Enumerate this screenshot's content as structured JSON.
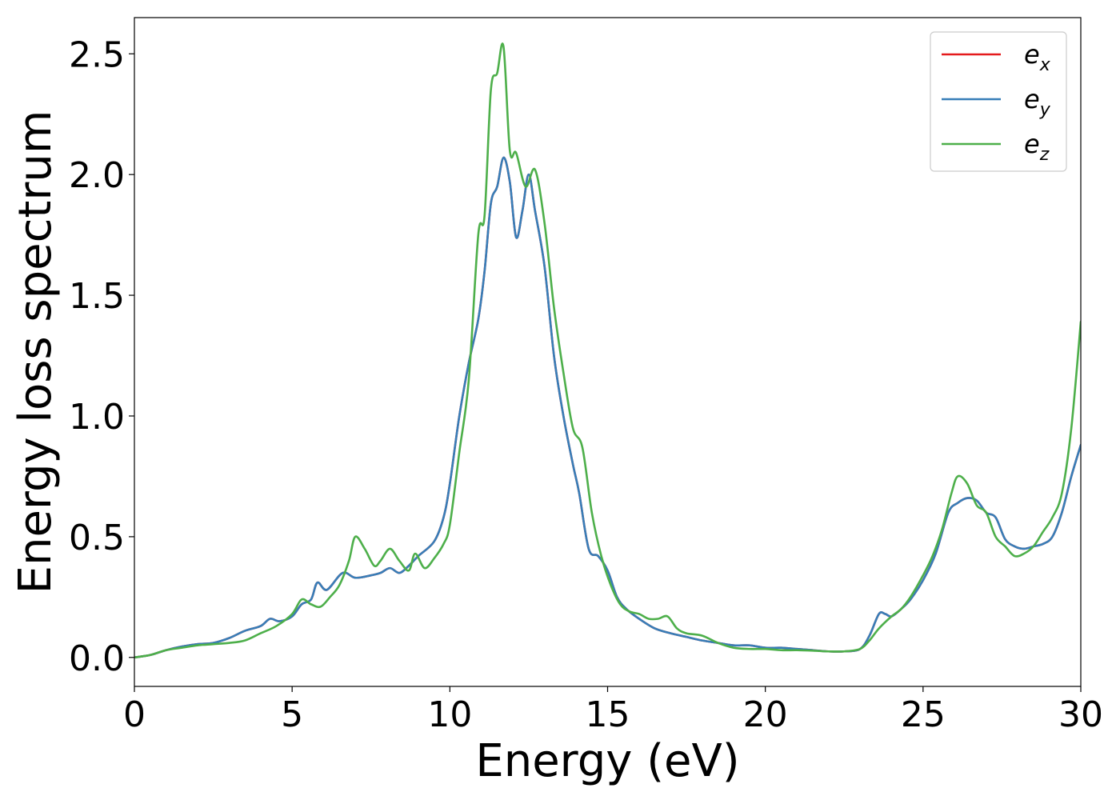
{
  "chart_data": {
    "type": "line",
    "title": "",
    "xlabel": "Energy (eV)",
    "ylabel": "Energy loss spectrum",
    "xlim": [
      0,
      30
    ],
    "ylim": [
      -0.12,
      2.65
    ],
    "xticks": [
      0,
      5,
      10,
      15,
      20,
      25,
      30
    ],
    "xtick_labels": [
      "0",
      "5",
      "10",
      "15",
      "20",
      "25",
      "30"
    ],
    "yticks": [
      0.0,
      0.5,
      1.0,
      1.5,
      2.0,
      2.5
    ],
    "ytick_labels": [
      "0.0",
      "0.5",
      "1.0",
      "1.5",
      "2.0",
      "2.5"
    ],
    "grid": false,
    "legend": "top-right",
    "series": [
      {
        "name": "e_x",
        "label_base": "e",
        "label_sub": "x",
        "color": "#e41a1c",
        "x": [
          0,
          0.5,
          1,
          1.5,
          2,
          2.5,
          3,
          3.5,
          4,
          4.3,
          4.6,
          5,
          5.3,
          5.6,
          5.8,
          6.1,
          6.6,
          7,
          7.5,
          7.8,
          8.1,
          8.4,
          8.7,
          9,
          9.5,
          9.8,
          10,
          10.3,
          10.6,
          10.9,
          11.1,
          11.3,
          11.5,
          11.7,
          11.9,
          12.1,
          12.3,
          12.5,
          12.7,
          13,
          13.3,
          13.6,
          13.9,
          14.1,
          14.4,
          14.7,
          15,
          15.3,
          15.6,
          16,
          16.5,
          17,
          17.5,
          18,
          18.5,
          19,
          19.5,
          20,
          20.5,
          21,
          21.5,
          22,
          22.5,
          23,
          23.3,
          23.6,
          23.8,
          24,
          24.3,
          24.6,
          25,
          25.4,
          25.8,
          26.1,
          26.4,
          26.7,
          27,
          27.3,
          27.6,
          27.9,
          28.2,
          28.5,
          28.8,
          29.1,
          29.4,
          29.7,
          30
        ],
        "y": [
          0,
          0.01,
          0.03,
          0.045,
          0.055,
          0.06,
          0.08,
          0.11,
          0.13,
          0.16,
          0.15,
          0.17,
          0.22,
          0.24,
          0.31,
          0.28,
          0.35,
          0.33,
          0.34,
          0.35,
          0.37,
          0.35,
          0.38,
          0.42,
          0.48,
          0.58,
          0.72,
          1.0,
          1.22,
          1.4,
          1.6,
          1.88,
          1.95,
          2.07,
          1.97,
          1.74,
          1.85,
          2.0,
          1.85,
          1.62,
          1.25,
          1.0,
          0.8,
          0.68,
          0.45,
          0.42,
          0.36,
          0.25,
          0.2,
          0.16,
          0.12,
          0.1,
          0.085,
          0.07,
          0.06,
          0.05,
          0.05,
          0.04,
          0.04,
          0.035,
          0.03,
          0.025,
          0.025,
          0.035,
          0.09,
          0.18,
          0.18,
          0.17,
          0.2,
          0.24,
          0.32,
          0.43,
          0.6,
          0.64,
          0.66,
          0.65,
          0.6,
          0.58,
          0.49,
          0.46,
          0.45,
          0.46,
          0.47,
          0.5,
          0.6,
          0.75,
          0.88
        ]
      },
      {
        "name": "e_y",
        "label_base": "e",
        "label_sub": "y",
        "color": "#377eb8",
        "x": [
          0,
          0.5,
          1,
          1.5,
          2,
          2.5,
          3,
          3.5,
          4,
          4.3,
          4.6,
          5,
          5.3,
          5.6,
          5.8,
          6.1,
          6.6,
          7,
          7.5,
          7.8,
          8.1,
          8.4,
          8.7,
          9,
          9.5,
          9.8,
          10,
          10.3,
          10.6,
          10.9,
          11.1,
          11.3,
          11.5,
          11.7,
          11.9,
          12.1,
          12.3,
          12.5,
          12.7,
          13,
          13.3,
          13.6,
          13.9,
          14.1,
          14.4,
          14.7,
          15,
          15.3,
          15.6,
          16,
          16.5,
          17,
          17.5,
          18,
          18.5,
          19,
          19.5,
          20,
          20.5,
          21,
          21.5,
          22,
          22.5,
          23,
          23.3,
          23.6,
          23.8,
          24,
          24.3,
          24.6,
          25,
          25.4,
          25.8,
          26.1,
          26.4,
          26.7,
          27,
          27.3,
          27.6,
          27.9,
          28.2,
          28.5,
          28.8,
          29.1,
          29.4,
          29.7,
          30
        ],
        "y": [
          0,
          0.01,
          0.03,
          0.045,
          0.055,
          0.06,
          0.08,
          0.11,
          0.13,
          0.16,
          0.15,
          0.17,
          0.22,
          0.24,
          0.31,
          0.28,
          0.35,
          0.33,
          0.34,
          0.35,
          0.37,
          0.35,
          0.38,
          0.42,
          0.48,
          0.58,
          0.72,
          1.0,
          1.22,
          1.4,
          1.6,
          1.88,
          1.95,
          2.07,
          1.97,
          1.74,
          1.85,
          2.0,
          1.85,
          1.62,
          1.25,
          1.0,
          0.8,
          0.68,
          0.45,
          0.42,
          0.36,
          0.25,
          0.2,
          0.16,
          0.12,
          0.1,
          0.085,
          0.07,
          0.06,
          0.05,
          0.05,
          0.04,
          0.04,
          0.035,
          0.03,
          0.025,
          0.025,
          0.035,
          0.09,
          0.18,
          0.18,
          0.17,
          0.2,
          0.24,
          0.32,
          0.43,
          0.6,
          0.64,
          0.66,
          0.65,
          0.6,
          0.58,
          0.49,
          0.46,
          0.45,
          0.46,
          0.47,
          0.5,
          0.6,
          0.75,
          0.88
        ]
      },
      {
        "name": "e_z",
        "label_base": "e",
        "label_sub": "z",
        "color": "#4daf4a",
        "x": [
          0,
          0.5,
          1,
          1.5,
          2,
          2.5,
          3,
          3.5,
          4,
          4.5,
          5,
          5.3,
          5.6,
          5.9,
          6.2,
          6.5,
          6.8,
          7,
          7.3,
          7.6,
          7.8,
          8.1,
          8.4,
          8.7,
          8.9,
          9.2,
          9.5,
          9.8,
          10,
          10.3,
          10.6,
          10.9,
          11.1,
          11.3,
          11.5,
          11.7,
          11.9,
          12.1,
          12.4,
          12.7,
          13,
          13.3,
          13.6,
          13.9,
          14.2,
          14.5,
          14.8,
          15.1,
          15.4,
          15.7,
          16,
          16.3,
          16.6,
          16.9,
          17.2,
          17.5,
          18,
          18.5,
          19,
          19.5,
          20,
          20.5,
          21,
          21.5,
          22,
          22.5,
          23,
          23.3,
          23.6,
          24,
          24.3,
          24.6,
          25,
          25.3,
          25.6,
          25.9,
          26.1,
          26.4,
          26.7,
          27,
          27.3,
          27.6,
          27.9,
          28.2,
          28.5,
          28.8,
          29.1,
          29.4,
          29.7,
          30
        ],
        "y": [
          0,
          0.01,
          0.03,
          0.04,
          0.05,
          0.055,
          0.06,
          0.07,
          0.1,
          0.13,
          0.18,
          0.24,
          0.22,
          0.21,
          0.25,
          0.3,
          0.4,
          0.5,
          0.45,
          0.38,
          0.4,
          0.45,
          0.4,
          0.36,
          0.43,
          0.37,
          0.41,
          0.47,
          0.55,
          0.85,
          1.15,
          1.75,
          1.83,
          2.35,
          2.42,
          2.53,
          2.1,
          2.09,
          1.95,
          2.02,
          1.8,
          1.45,
          1.18,
          0.95,
          0.87,
          0.6,
          0.42,
          0.3,
          0.22,
          0.19,
          0.18,
          0.16,
          0.16,
          0.17,
          0.12,
          0.1,
          0.09,
          0.06,
          0.04,
          0.035,
          0.035,
          0.03,
          0.03,
          0.028,
          0.025,
          0.025,
          0.035,
          0.07,
          0.12,
          0.17,
          0.2,
          0.25,
          0.34,
          0.42,
          0.53,
          0.68,
          0.75,
          0.72,
          0.63,
          0.6,
          0.5,
          0.46,
          0.42,
          0.43,
          0.46,
          0.52,
          0.58,
          0.68,
          0.95,
          1.39
        ]
      }
    ]
  }
}
